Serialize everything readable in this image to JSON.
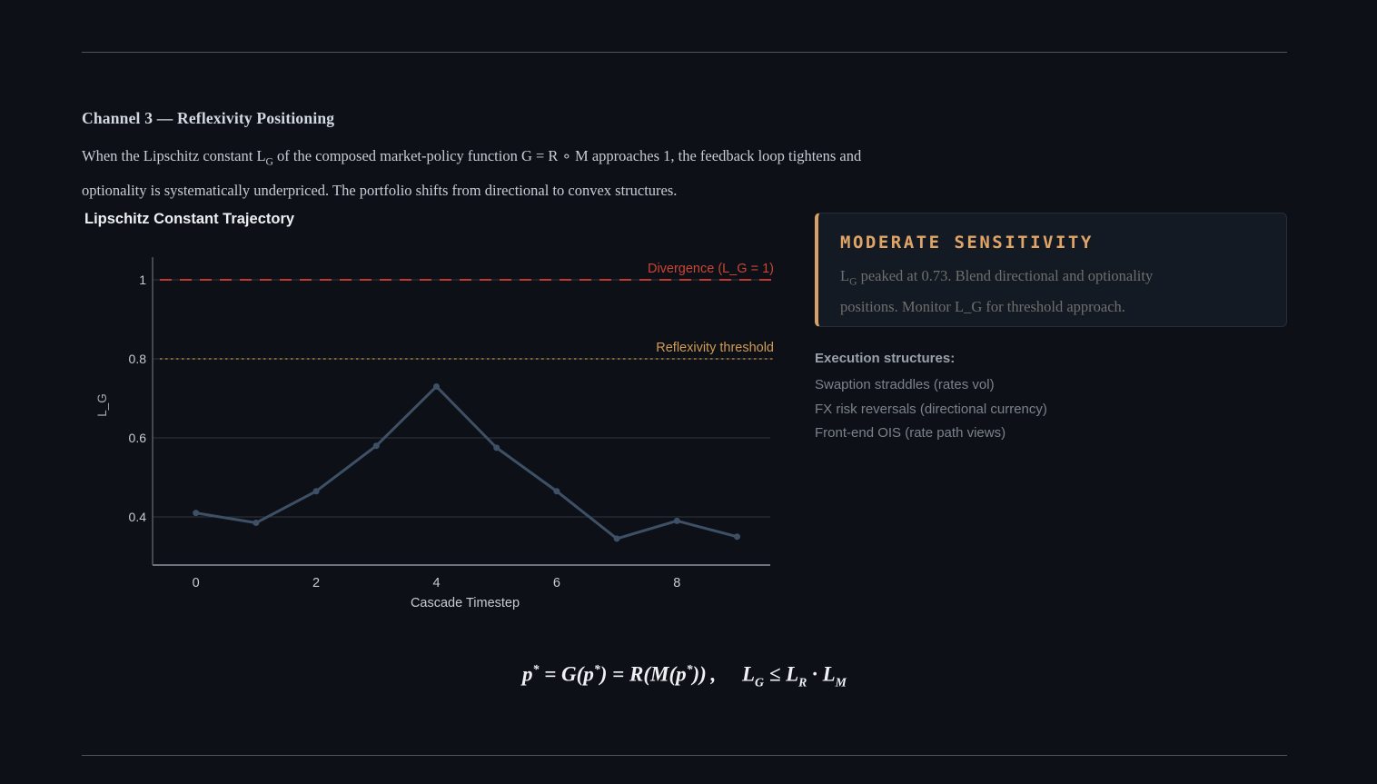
{
  "page": {
    "heading": "Channel 3 — Reflexivity Positioning",
    "intro_line1": [
      {
        "t": "text",
        "v": "When the Lipschitz constant L"
      },
      {
        "t": "sub",
        "v": "G"
      },
      {
        "t": "text",
        "v": " of the composed market-policy function G = R ∘ M approaches 1, the feedback loop tightens and"
      }
    ],
    "intro_line2": "optionality is systematically underpriced. The portfolio shifts from directional to convex structures."
  },
  "chart": {
    "title": "Lipschitz Constant Trajectory"
  },
  "chart_data": {
    "type": "line",
    "title": "Lipschitz Constant Trajectory",
    "xlabel": "Cascade Timestep",
    "ylabel": "L_G",
    "x": [
      0,
      1,
      2,
      3,
      4,
      5,
      6,
      7,
      8,
      9
    ],
    "values": [
      0.41,
      0.385,
      0.465,
      0.58,
      0.73,
      0.575,
      0.465,
      0.345,
      0.39,
      0.35
    ],
    "xticks": [
      0,
      2,
      4,
      6,
      8
    ],
    "yticks": [
      0.4,
      0.6,
      0.8,
      1
    ],
    "xlim": [
      -0.72,
      9.55
    ],
    "ylim": [
      0.28,
      1.06
    ],
    "grid": "horizontal",
    "legend_position": "none",
    "line_color": "#3e5066",
    "reference_lines": [
      {
        "label": "Divergence (L_G = 1)",
        "value": 1,
        "style": "dashed",
        "line_color": "#bf3a2d",
        "label_color": "#c94536"
      },
      {
        "label": "Reflexivity threshold",
        "value": 0.8,
        "style": "dotted",
        "line_color": "#a87c36",
        "label_color": "#d09a52"
      }
    ]
  },
  "callout": {
    "title": "MODERATE SENSITIVITY",
    "title_color": "#e1a467",
    "accent_color": "#d8a266",
    "body_line1": [
      {
        "t": "text",
        "v": "L"
      },
      {
        "t": "sub",
        "v": "G"
      },
      {
        "t": "text",
        "v": " peaked at 0.73. Blend directional and optionality"
      }
    ],
    "body_line2": "positions. Monitor L_G for threshold approach."
  },
  "execution": {
    "header": "Execution structures:",
    "items": [
      "Swaption straddles (rates vol)",
      "FX risk reversals (directional currency)",
      "Front-end OIS (rate path views)"
    ]
  },
  "formula": [
    {
      "t": "text",
      "v": "p"
    },
    {
      "t": "sup",
      "v": "*"
    },
    {
      "t": "text",
      "v": " = G(p"
    },
    {
      "t": "sup",
      "v": "*"
    },
    {
      "t": "text",
      "v": ") = R(M(p"
    },
    {
      "t": "sup",
      "v": "*"
    },
    {
      "t": "text",
      "v": ")) ,  L"
    },
    {
      "t": "sub",
      "v": "G"
    },
    {
      "t": "text",
      "v": " ≤ L"
    },
    {
      "t": "sub",
      "v": "R"
    },
    {
      "t": "text",
      "v": " · L"
    },
    {
      "t": "sub",
      "v": "M"
    }
  ]
}
